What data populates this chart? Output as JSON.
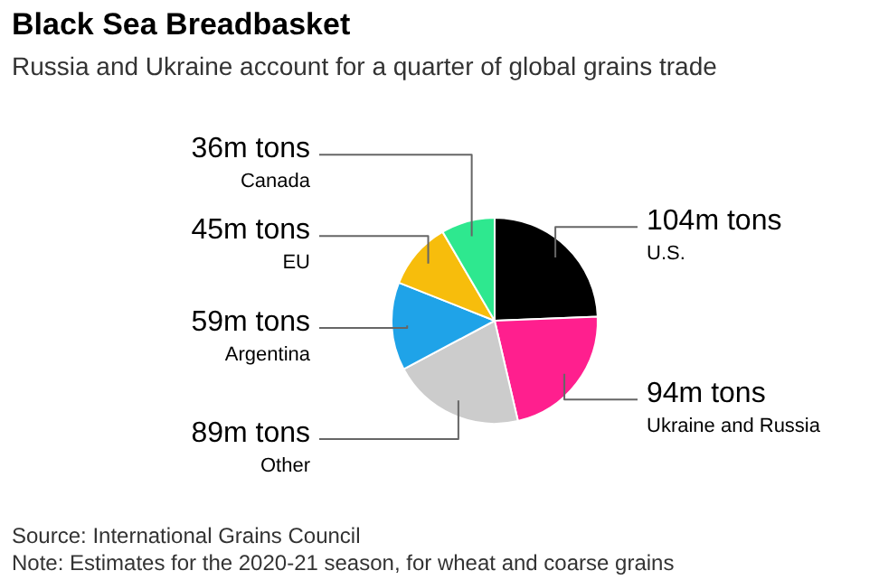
{
  "chart_data": {
    "type": "pie",
    "title": "Black Sea Breadbasket",
    "subtitle": "Russia and Ukraine account for a quarter of global grains trade",
    "categories": [
      "U.S.",
      "Ukraine and Russia",
      "Other",
      "Argentina",
      "EU",
      "Canada"
    ],
    "values": [
      104,
      94,
      89,
      59,
      45,
      36
    ],
    "colors": [
      "#000000",
      "#ff1f8e",
      "#cccccc",
      "#1fa3e8",
      "#f7bd0c",
      "#2ee88f"
    ],
    "value_labels": [
      "104m tons",
      "94m tons",
      "89m tons",
      "59m tons",
      "45m tons",
      "36m tons"
    ],
    "annotations": [
      "Source: International Grains Council",
      "Note: Estimates for the 2020-21 season, for wheat and coarse grains"
    ]
  }
}
